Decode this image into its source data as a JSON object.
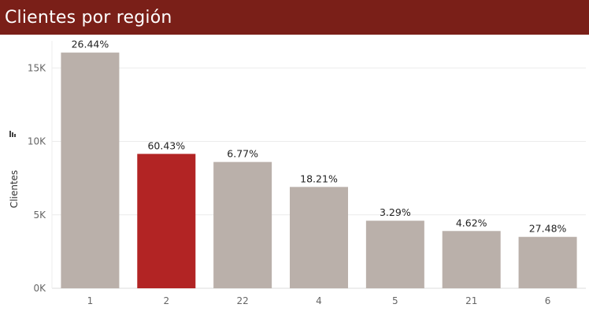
{
  "header": {
    "title": "Clientes por región"
  },
  "colors": {
    "header_bg": "#7a1f18",
    "bar_default": "#bab0aa",
    "bar_highlight": "#b22424",
    "grid": "#ececec"
  },
  "chart_data": {
    "type": "bar",
    "title": "Clientes por región",
    "ylabel": "Clientes",
    "xlabel": "",
    "categories": [
      "1",
      "2",
      "22",
      "4",
      "5",
      "21",
      "6"
    ],
    "values": [
      16050,
      9150,
      8600,
      6900,
      4600,
      3900,
      3500
    ],
    "data_labels": [
      "26.44%",
      "60.43%",
      "6.77%",
      "18.21%",
      "3.29%",
      "4.62%",
      "27.48%"
    ],
    "highlight_index": 1,
    "ylim": [
      0,
      17000
    ],
    "yticks": [
      0,
      5000,
      10000,
      15000
    ],
    "ytick_labels": [
      "0K",
      "5K",
      "10K",
      "15K"
    ],
    "grid": true,
    "legend": "none"
  }
}
